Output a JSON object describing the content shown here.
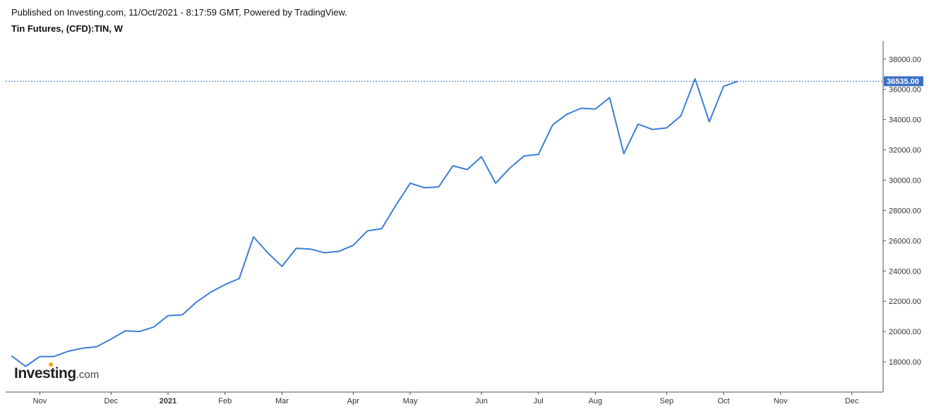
{
  "header": {
    "published": "Published on Investing.com, 11/Oct/2021 - 8:17:59 GMT, Powered by TradingView.",
    "title": "Tin Futures, (CFD):TIN, W"
  },
  "logo": {
    "main": "Investing",
    "suffix": ".com"
  },
  "colors": {
    "line": "#3b7fd6",
    "last_label_bg": "#3b6fc6",
    "axis": "#555555"
  },
  "chart_data": {
    "type": "line",
    "title": "Tin Futures, (CFD):TIN, W",
    "ylim": [
      16000,
      39200
    ],
    "y_ticks": [
      18000,
      20000,
      22000,
      24000,
      26000,
      28000,
      30000,
      32000,
      34000,
      36000,
      38000
    ],
    "y_tick_labels": [
      "18000.00",
      "20000.00",
      "22000.00",
      "24000.00",
      "26000.00",
      "28000.00",
      "30000.00",
      "32000.00",
      "34000.00",
      "36000.00",
      "38000.00"
    ],
    "x_ticks": [
      {
        "label": "Nov",
        "week": 2,
        "bold": false
      },
      {
        "label": "Dec",
        "week": 7,
        "bold": false
      },
      {
        "label": "2021",
        "week": 11,
        "bold": true
      },
      {
        "label": "Feb",
        "week": 15,
        "bold": false
      },
      {
        "label": "Mar",
        "week": 19,
        "bold": false
      },
      {
        "label": "Apr",
        "week": 24,
        "bold": false
      },
      {
        "label": "May",
        "week": 28,
        "bold": false
      },
      {
        "label": "Jun",
        "week": 33,
        "bold": false
      },
      {
        "label": "Jul",
        "week": 37,
        "bold": false
      },
      {
        "label": "Aug",
        "week": 41,
        "bold": false
      },
      {
        "label": "Sep",
        "week": 46,
        "bold": false
      },
      {
        "label": "Oct",
        "week": 50,
        "bold": false
      },
      {
        "label": "Nov",
        "week": 54,
        "bold": false
      },
      {
        "label": "Dec",
        "week": 59,
        "bold": false
      }
    ],
    "x_range": [
      -0.4,
      61.2
    ],
    "values": [
      18400,
      17700,
      18350,
      18350,
      18700,
      18900,
      19000,
      19500,
      20050,
      20000,
      20300,
      21050,
      21100,
      21950,
      22600,
      23100,
      23500,
      26250,
      25200,
      24300,
      25500,
      25450,
      25200,
      25300,
      25700,
      26650,
      26800,
      28350,
      29800,
      29500,
      29550,
      30950,
      30700,
      31550,
      29800,
      30800,
      31600,
      31700,
      33650,
      34350,
      34750,
      34700,
      35450,
      31750,
      33700,
      33350,
      33450,
      34250,
      36700,
      33850,
      36200,
      36535
    ],
    "last_value": 36535,
    "last_value_label": "36535.00",
    "grid": false,
    "legend": "none"
  }
}
